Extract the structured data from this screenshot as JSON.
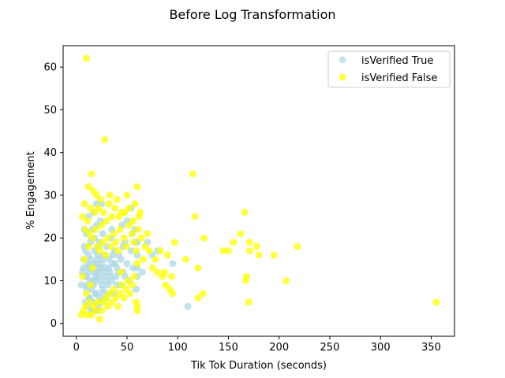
{
  "chart_data": {
    "type": "scatter",
    "title": "Before Log Transformation",
    "xlabel": "Tik Tok Duration (seconds)",
    "ylabel": "% Engagement",
    "xlim": [
      -13,
      373
    ],
    "ylim": [
      -3,
      65
    ],
    "xticks": [
      0,
      50,
      100,
      150,
      200,
      250,
      300,
      350
    ],
    "yticks": [
      0,
      10,
      20,
      30,
      40,
      50,
      60
    ],
    "grid": false,
    "legend_position": "top-right",
    "series": [
      {
        "name": "isVerified True",
        "color": "#add8e6",
        "points": [
          [
            5,
            9
          ],
          [
            6,
            12
          ],
          [
            7,
            15
          ],
          [
            8,
            18
          ],
          [
            9,
            11
          ],
          [
            10,
            8
          ],
          [
            11,
            14
          ],
          [
            12,
            16
          ],
          [
            13,
            6
          ],
          [
            14,
            10
          ],
          [
            15,
            20
          ],
          [
            16,
            13
          ],
          [
            17,
            9
          ],
          [
            18,
            17
          ],
          [
            19,
            11
          ],
          [
            20,
            7
          ],
          [
            21,
            15
          ],
          [
            22,
            12
          ],
          [
            23,
            19
          ],
          [
            24,
            10
          ],
          [
            25,
            14
          ],
          [
            26,
            8
          ],
          [
            27,
            16
          ],
          [
            28,
            11
          ],
          [
            29,
            13
          ],
          [
            30,
            18
          ],
          [
            31,
            9
          ],
          [
            32,
            15
          ],
          [
            33,
            12
          ],
          [
            34,
            20
          ],
          [
            35,
            10
          ],
          [
            36,
            14
          ],
          [
            37,
            7
          ],
          [
            38,
            17
          ],
          [
            39,
            11
          ],
          [
            40,
            13
          ],
          [
            42,
            16
          ],
          [
            44,
            9
          ],
          [
            46,
            12
          ],
          [
            48,
            19
          ],
          [
            50,
            14
          ],
          [
            52,
            10
          ],
          [
            54,
            17
          ],
          [
            56,
            13
          ],
          [
            58,
            22
          ],
          [
            60,
            11
          ],
          [
            60,
            16
          ],
          [
            60,
            19
          ],
          [
            60,
            13
          ],
          [
            59,
            8
          ],
          [
            8,
            22
          ],
          [
            10,
            21
          ],
          [
            12,
            25
          ],
          [
            14,
            19
          ],
          [
            16,
            22
          ],
          [
            18,
            20
          ],
          [
            20,
            23
          ],
          [
            22,
            18
          ],
          [
            24,
            24
          ],
          [
            26,
            21
          ],
          [
            9,
            5
          ],
          [
            11,
            4
          ],
          [
            13,
            6
          ],
          [
            15,
            3
          ],
          [
            17,
            5
          ],
          [
            19,
            7
          ],
          [
            21,
            4
          ],
          [
            23,
            6
          ],
          [
            25,
            5
          ],
          [
            27,
            7
          ],
          [
            7,
            13
          ],
          [
            9,
            17
          ],
          [
            11,
            9
          ],
          [
            13,
            12
          ],
          [
            15,
            8
          ],
          [
            17,
            14
          ],
          [
            19,
            10
          ],
          [
            21,
            16
          ],
          [
            23,
            13
          ],
          [
            25,
            9
          ],
          [
            10,
            11
          ],
          [
            12,
            13
          ],
          [
            14,
            15
          ],
          [
            16,
            10
          ],
          [
            18,
            12
          ],
          [
            20,
            14
          ],
          [
            22,
            11
          ],
          [
            24,
            13
          ],
          [
            26,
            15
          ],
          [
            28,
            12
          ],
          [
            30,
            10
          ],
          [
            32,
            13
          ],
          [
            34,
            11
          ],
          [
            36,
            16
          ],
          [
            38,
            14
          ],
          [
            40,
            9
          ],
          [
            42,
            12
          ],
          [
            44,
            15
          ],
          [
            46,
            18
          ],
          [
            48,
            11
          ],
          [
            50,
            24
          ],
          [
            55,
            21
          ],
          [
            45,
            23
          ],
          [
            35,
            22
          ],
          [
            58,
            19
          ],
          [
            20,
            28
          ],
          [
            17,
            26
          ],
          [
            25,
            28
          ],
          [
            54,
            27
          ],
          [
            65,
            12
          ],
          [
            70,
            19
          ],
          [
            75,
            16
          ],
          [
            80,
            17
          ],
          [
            95,
            14
          ],
          [
            110,
            4
          ],
          [
            17,
            3
          ],
          [
            21,
            3
          ],
          [
            29,
            6
          ],
          [
            33,
            7
          ]
        ]
      },
      {
        "name": "isVerified False",
        "color": "#ffff00",
        "points": [
          [
            10,
            62
          ],
          [
            28,
            43
          ],
          [
            15,
            35
          ],
          [
            12,
            32
          ],
          [
            17,
            31
          ],
          [
            20,
            30
          ],
          [
            8,
            28
          ],
          [
            22,
            27
          ],
          [
            33,
            30
          ],
          [
            40,
            29
          ],
          [
            50,
            30
          ],
          [
            60,
            32
          ],
          [
            63,
            26
          ],
          [
            58,
            28
          ],
          [
            45,
            26
          ],
          [
            35,
            25
          ],
          [
            30,
            24
          ],
          [
            25,
            23
          ],
          [
            18,
            26
          ],
          [
            14,
            27
          ],
          [
            6,
            25
          ],
          [
            9,
            22
          ],
          [
            11,
            24
          ],
          [
            13,
            21
          ],
          [
            16,
            20
          ],
          [
            19,
            22
          ],
          [
            21,
            18
          ],
          [
            23,
            17
          ],
          [
            26,
            19
          ],
          [
            29,
            16
          ],
          [
            31,
            20
          ],
          [
            34,
            18
          ],
          [
            37,
            21
          ],
          [
            39,
            19
          ],
          [
            41,
            17
          ],
          [
            43,
            22
          ],
          [
            47,
            20
          ],
          [
            49,
            18
          ],
          [
            52,
            23
          ],
          [
            55,
            21
          ],
          [
            57,
            19
          ],
          [
            59,
            17
          ],
          [
            61,
            22
          ],
          [
            64,
            20
          ],
          [
            66,
            15
          ],
          [
            68,
            18
          ],
          [
            70,
            21
          ],
          [
            72,
            17
          ],
          [
            75,
            13
          ],
          [
            78,
            15
          ],
          [
            80,
            12
          ],
          [
            83,
            17
          ],
          [
            85,
            11
          ],
          [
            87,
            12
          ],
          [
            88,
            9
          ],
          [
            90,
            16
          ],
          [
            92,
            8
          ],
          [
            94,
            11
          ],
          [
            95,
            7
          ],
          [
            97,
            19
          ],
          [
            5,
            2
          ],
          [
            7,
            3
          ],
          [
            9,
            4
          ],
          [
            11,
            2
          ],
          [
            13,
            5
          ],
          [
            15,
            2
          ],
          [
            17,
            4
          ],
          [
            19,
            3
          ],
          [
            21,
            5
          ],
          [
            23,
            1
          ],
          [
            25,
            3
          ],
          [
            27,
            5
          ],
          [
            29,
            6
          ],
          [
            31,
            4
          ],
          [
            33,
            7
          ],
          [
            35,
            5
          ],
          [
            37,
            8
          ],
          [
            39,
            6
          ],
          [
            41,
            4
          ],
          [
            43,
            7
          ],
          [
            45,
            9
          ],
          [
            47,
            6
          ],
          [
            49,
            8
          ],
          [
            51,
            10
          ],
          [
            53,
            7
          ],
          [
            55,
            9
          ],
          [
            57,
            11
          ],
          [
            59,
            5
          ],
          [
            60,
            3
          ],
          [
            60,
            4
          ],
          [
            115,
            35
          ],
          [
            117,
            25
          ],
          [
            108,
            15
          ],
          [
            120,
            13
          ],
          [
            126,
            20
          ],
          [
            125,
            7
          ],
          [
            120,
            6
          ],
          [
            145,
            17
          ],
          [
            150,
            17
          ],
          [
            155,
            19
          ],
          [
            162,
            21
          ],
          [
            166,
            26
          ],
          [
            167,
            10
          ],
          [
            168,
            11
          ],
          [
            170,
            5
          ],
          [
            171,
            17
          ],
          [
            171,
            19
          ],
          [
            178,
            18
          ],
          [
            180,
            16
          ],
          [
            195,
            16
          ],
          [
            207,
            10
          ],
          [
            218,
            18
          ],
          [
            355,
            5
          ],
          [
            60,
            14
          ],
          [
            6,
            11
          ],
          [
            8,
            15
          ],
          [
            10,
            7
          ],
          [
            12,
            18
          ],
          [
            14,
            9
          ],
          [
            16,
            13
          ],
          [
            24,
            29
          ],
          [
            32,
            28
          ],
          [
            42,
            25
          ],
          [
            52,
            27
          ],
          [
            56,
            24
          ],
          [
            62,
            25
          ],
          [
            48,
            26
          ],
          [
            38,
            27
          ],
          [
            27,
            26
          ],
          [
            44,
            12
          ]
        ]
      }
    ]
  }
}
